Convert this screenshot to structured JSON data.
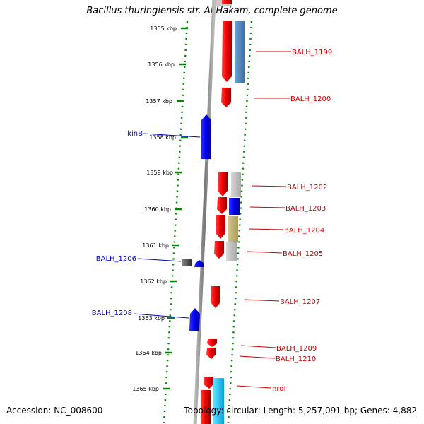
{
  "title": "Bacillus thuringiensis str. Al Hakam, complete genome",
  "footer": {
    "accession": "Accession: NC_008600",
    "topology": "Topology: circular; Length: 5,257,091 bp; Genes: 4,882"
  },
  "ticks": [
    "1355 kbp",
    "1356 kbp",
    "1357 kbp",
    "1358 kbp",
    "1359 kbp",
    "1360 kbp",
    "1361 kbp",
    "1362 kbp",
    "1363 kbp",
    "1364 kbp",
    "1365 kbp"
  ],
  "colors": {
    "forward_gene": "#ee0000",
    "reverse_gene": "#0000ee",
    "backbone": "#808080",
    "dotted_ring": "#008800",
    "label_red": "#cc0000",
    "label_blue": "#0000cc"
  },
  "genes": [
    {
      "name": "BALH_1199",
      "strand": "forward"
    },
    {
      "name": "BALH_1200",
      "strand": "forward"
    },
    {
      "name": "kinB",
      "strand": "reverse"
    },
    {
      "name": "BALH_1202",
      "strand": "forward"
    },
    {
      "name": "BALH_1203",
      "strand": "forward"
    },
    {
      "name": "BALH_1204",
      "strand": "forward"
    },
    {
      "name": "BALH_1205",
      "strand": "forward"
    },
    {
      "name": "BALH_1206",
      "strand": "reverse"
    },
    {
      "name": "BALH_1207",
      "strand": "forward"
    },
    {
      "name": "BALH_1208",
      "strand": "reverse"
    },
    {
      "name": "BALH_1209",
      "strand": "forward"
    },
    {
      "name": "BALH_1210",
      "strand": "forward"
    },
    {
      "name": "nrdI",
      "strand": "forward"
    }
  ]
}
